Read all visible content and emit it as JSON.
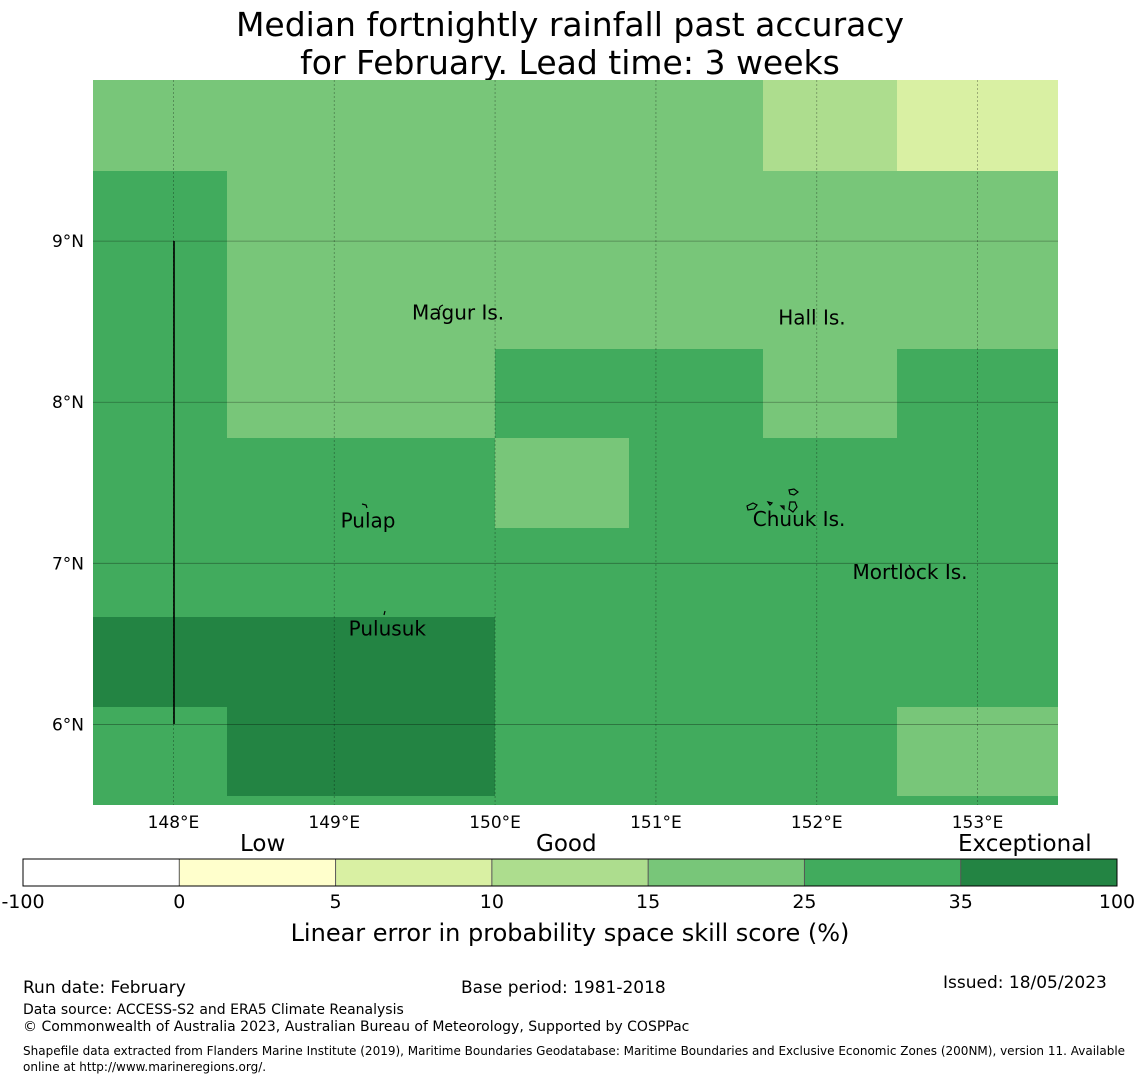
{
  "title_line1": "Median fortnightly rainfall past accuracy",
  "title_line2": "for February. Lead time: 3 weeks",
  "map": {
    "lon_range": [
      147.5,
      153.5
    ],
    "lat_range": [
      5.5,
      10.0
    ],
    "lon_ticks": [
      "148°E",
      "149°E",
      "150°E",
      "151°E",
      "152°E",
      "153°E"
    ],
    "lat_ticks": [
      "9°N",
      "8°N",
      "7°N",
      "6°N"
    ],
    "cell_colors": [
      [
        "#78c679",
        "#78c679",
        "#78c679",
        "#78c679",
        "#78c679",
        "#addd8e",
        "#d9f0a3"
      ],
      [
        "#41ab5d",
        "#78c679",
        "#78c679",
        "#78c679",
        "#78c679",
        "#78c679",
        "#78c679"
      ],
      [
        "#41ab5d",
        "#78c679",
        "#78c679",
        "#41ab5d",
        "#41ab5d",
        "#78c679",
        "#41ab5d"
      ],
      [
        "#41ab5d",
        "#41ab5d",
        "#41ab5d",
        "#78c679",
        "#41ab5d",
        "#41ab5d",
        "#41ab5d"
      ],
      [
        "#41ab5d",
        "#41ab5d",
        "#41ab5d",
        "#41ab5d",
        "#41ab5d",
        "#41ab5d",
        "#41ab5d"
      ],
      [
        "#238443",
        "#238443",
        "#238443",
        "#41ab5d",
        "#41ab5d",
        "#41ab5d",
        "#41ab5d"
      ],
      [
        "#41ab5d",
        "#238443",
        "#238443",
        "#41ab5d",
        "#41ab5d",
        "#41ab5d",
        "#78c679"
      ]
    ],
    "places": [
      {
        "name": "Magur Is.",
        "lon": 149.77,
        "lat": 8.55
      },
      {
        "name": "Hall Is.",
        "lon": 151.97,
        "lat": 8.52
      },
      {
        "name": "Pulap",
        "lon": 149.21,
        "lat": 7.26
      },
      {
        "name": "Chuuk Is.",
        "lon": 151.89,
        "lat": 7.27
      },
      {
        "name": "Mortlock Is.",
        "lon": 152.58,
        "lat": 6.94
      },
      {
        "name": "Pulusuk",
        "lon": 149.33,
        "lat": 6.59
      }
    ]
  },
  "colorbar": {
    "colors": [
      "#ffffff",
      "#ffffcc",
      "#d9f0a3",
      "#addd8e",
      "#78c679",
      "#41ab5d",
      "#238443"
    ],
    "ticks": [
      "-100",
      "0",
      "5",
      "10",
      "15",
      "25",
      "35",
      "100"
    ],
    "category_low": "Low",
    "category_good": "Good",
    "category_exceptional": "Exceptional",
    "title": "Linear error in probability space skill score (%)"
  },
  "footer": {
    "run_date": "Run date: February",
    "base_period": "Base period: 1981-2018",
    "issued": "Issued: 18/05/2023",
    "data_source": "Data source: ACCESS-S2 and ERA5 Climate Reanalysis",
    "copyright": "© Commonwealth of Australia 2023, Australian Bureau of Meteorology, Supported by COSPPac",
    "shapefile_line1": "Shapefile data extracted from Flanders Marine Institute (2019), Maritime Boundaries Geodatabase: Maritime Boundaries and Exclusive Economic Zones (200NM), version 11. Available",
    "shapefile_line2": "online at http://www.marineregions.org/."
  }
}
